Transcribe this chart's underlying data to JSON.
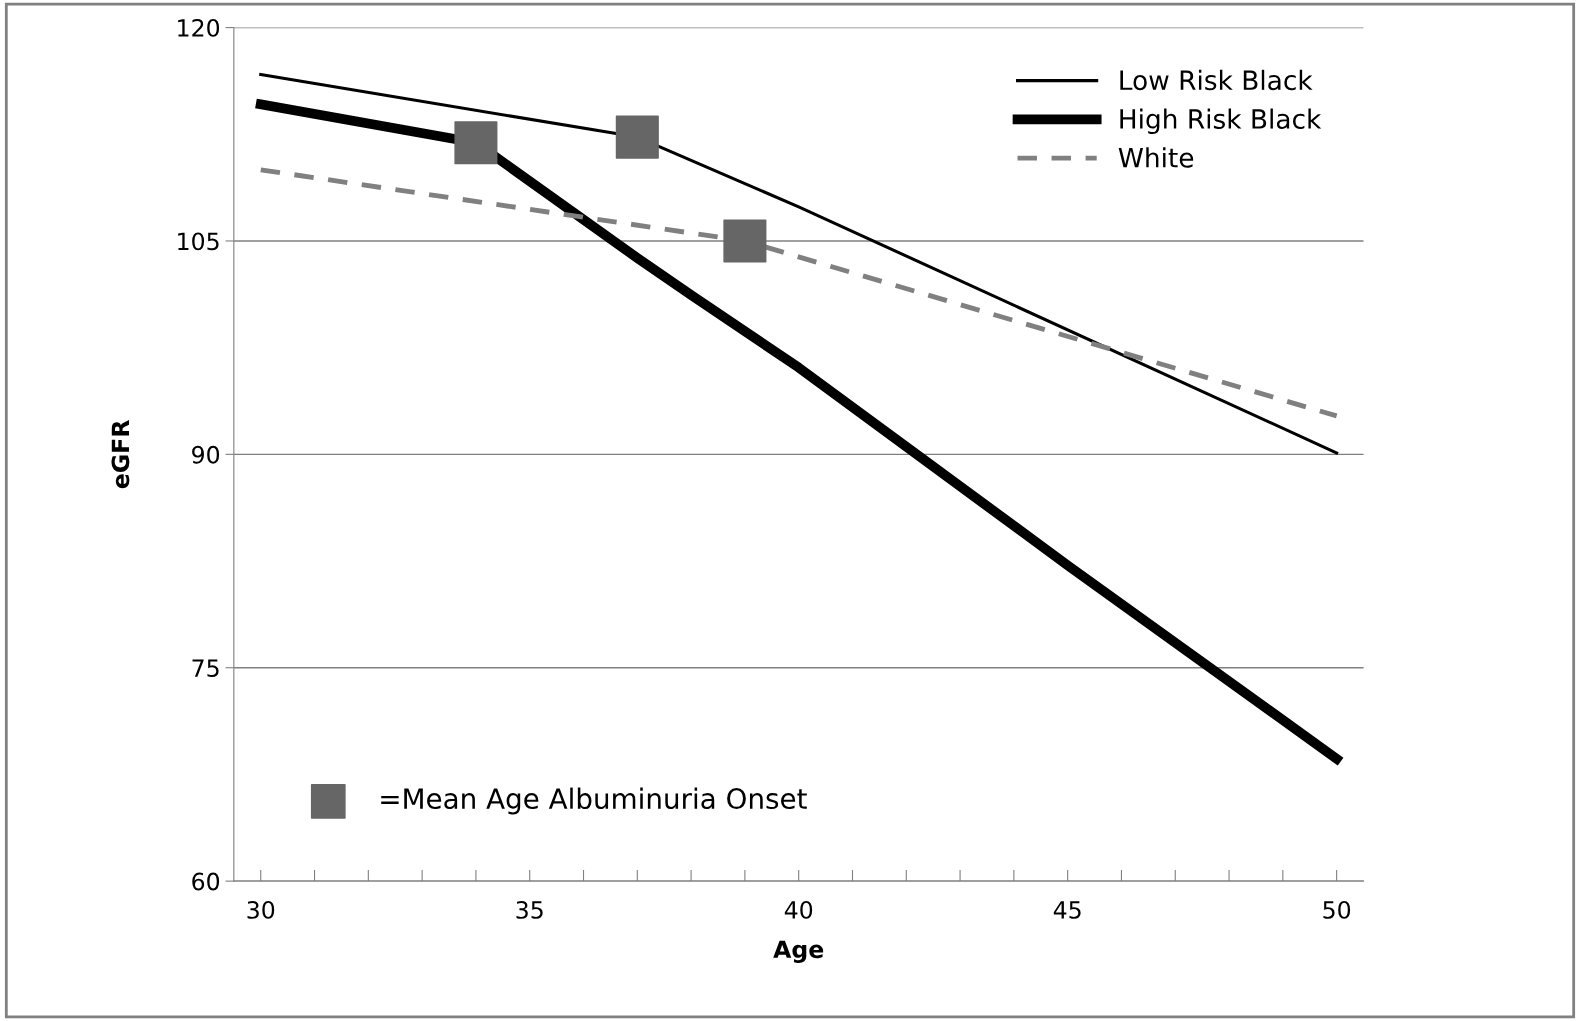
{
  "chart_data": {
    "type": "line",
    "xlabel": "Age",
    "ylabel": "eGFR",
    "xlim": [
      29.5,
      50.5
    ],
    "ylim": [
      60,
      120
    ],
    "xticks": [
      30,
      {
        "value": 31,
        "label": null
      },
      {
        "value": 32,
        "label": null
      },
      {
        "value": 33,
        "label": null
      },
      {
        "value": 34,
        "label": null
      },
      35,
      {
        "value": 36,
        "label": null
      },
      {
        "value": 37,
        "label": null
      },
      {
        "value": 38,
        "label": null
      },
      {
        "value": 39,
        "label": null
      },
      40,
      {
        "value": 41,
        "label": null
      },
      {
        "value": 42,
        "label": null
      },
      {
        "value": 43,
        "label": null
      },
      {
        "value": 44,
        "label": null
      },
      45,
      {
        "value": 46,
        "label": null
      },
      {
        "value": 47,
        "label": null
      },
      {
        "value": 48,
        "label": null
      },
      {
        "value": 49,
        "label": null
      },
      50
    ],
    "yticks": [
      60,
      75,
      90,
      105,
      120
    ],
    "grid": "y",
    "legend": "top right",
    "series": [
      {
        "name": "Low Risk Black",
        "color": "#000000",
        "x": [
          30,
          37,
          40,
          50
        ],
        "values": [
          116.7,
          112.3,
          107.4,
          90.1
        ],
        "line_style": "solid",
        "marker": "none"
      },
      {
        "name": "High Risk Black",
        "color": "#000000",
        "x": [
          30,
          34,
          37,
          38,
          40,
          45,
          50
        ],
        "values": [
          114.6,
          111.9,
          103.8,
          101.2,
          96.1,
          82.2,
          68.6
        ],
        "line_style": "solid",
        "marker": "none"
      },
      {
        "name": "White",
        "color": "#808080",
        "x": [
          30,
          39,
          50
        ],
        "values": [
          110.0,
          105.0,
          92.7
        ],
        "line_style": "dashed",
        "marker": "none"
      },
      {
        "name": "=Mean Age Albuminuria Onset",
        "type": "scatter",
        "color": "#666666",
        "x": [
          34,
          37,
          39
        ],
        "values": [
          111.9,
          112.3,
          105.0
        ],
        "marker": "square"
      }
    ]
  }
}
